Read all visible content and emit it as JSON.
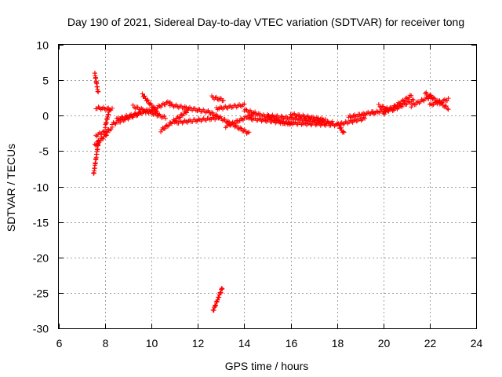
{
  "chart_data": {
    "type": "scatter",
    "title": "Day 190 of 2021, Sidereal Day-to-day VTEC variation (SDTVAR) for receiver tong",
    "xlabel": "GPS time / hours",
    "ylabel": "SDTVAR / TECUs",
    "xlim": [
      6,
      24
    ],
    "ylim": [
      -30,
      10
    ],
    "xticks": [
      6,
      8,
      10,
      12,
      14,
      16,
      18,
      20,
      22,
      24
    ],
    "yticks": [
      -30,
      -25,
      -20,
      -15,
      -10,
      -5,
      0,
      5,
      10
    ],
    "grid": true,
    "marker": "+",
    "series_color": "#ff0000",
    "segments": [
      {
        "x": [
          7.55,
          7.7
        ],
        "y": [
          6.0,
          3.2
        ]
      },
      {
        "x": [
          7.5,
          7.72
        ],
        "y": [
          -8.3,
          -3.5
        ]
      },
      {
        "x": [
          7.55,
          8.1
        ],
        "y": [
          -4.2,
          -2.5
        ]
      },
      {
        "x": [
          7.6,
          8.3
        ],
        "y": [
          -2.8,
          -1.8
        ]
      },
      {
        "x": [
          7.6,
          8.3
        ],
        "y": [
          1.1,
          0.9
        ]
      },
      {
        "x": [
          8.0,
          8.2
        ],
        "y": [
          -1.5,
          1.0
        ]
      },
      {
        "x": [
          8.3,
          9.5
        ],
        "y": [
          -1.2,
          0.3
        ]
      },
      {
        "x": [
          8.5,
          10.0
        ],
        "y": [
          -0.5,
          0.8
        ]
      },
      {
        "x": [
          9.2,
          10.6
        ],
        "y": [
          1.3,
          -0.3
        ]
      },
      {
        "x": [
          9.6,
          10.3
        ],
        "y": [
          3.0,
          0.2
        ]
      },
      {
        "x": [
          10.0,
          10.8
        ],
        "y": [
          0.8,
          2.0
        ]
      },
      {
        "x": [
          10.4,
          11.6
        ],
        "y": [
          -2.1,
          0.8
        ]
      },
      {
        "x": [
          10.8,
          12.5
        ],
        "y": [
          1.5,
          0.5
        ]
      },
      {
        "x": [
          11.0,
          12.9
        ],
        "y": [
          -1.0,
          -0.3
        ]
      },
      {
        "x": [
          12.6,
          13.1
        ],
        "y": [
          2.6,
          2.2
        ]
      },
      {
        "x": [
          12.8,
          14.0
        ],
        "y": [
          1.0,
          1.5
        ]
      },
      {
        "x": [
          12.5,
          14.2
        ],
        "y": [
          0.5,
          -2.5
        ]
      },
      {
        "x": [
          13.2,
          14.4
        ],
        "y": [
          -1.5,
          0.2
        ]
      },
      {
        "x": [
          14.0,
          15.6
        ],
        "y": [
          0.8,
          -0.8
        ]
      },
      {
        "x": [
          14.2,
          16.0
        ],
        "y": [
          -0.4,
          -1.1
        ]
      },
      {
        "x": [
          15.0,
          17.8
        ],
        "y": [
          0.0,
          -1.0
        ]
      },
      {
        "x": [
          15.6,
          18.0
        ],
        "y": [
          -1.0,
          -1.3
        ]
      },
      {
        "x": [
          16.0,
          17.5
        ],
        "y": [
          0.2,
          -0.6
        ]
      },
      {
        "x": [
          18.0,
          18.3
        ],
        "y": [
          -1.0,
          -2.5
        ]
      },
      {
        "x": [
          18.1,
          19.2
        ],
        "y": [
          -1.2,
          -0.4
        ]
      },
      {
        "x": [
          18.5,
          19.6
        ],
        "y": [
          -0.2,
          0.5
        ]
      },
      {
        "x": [
          19.5,
          20.6
        ],
        "y": [
          0.3,
          1.2
        ]
      },
      {
        "x": [
          19.8,
          20.2
        ],
        "y": [
          1.4,
          0.9
        ]
      },
      {
        "x": [
          20.0,
          21.2
        ],
        "y": [
          0.3,
          2.8
        ]
      },
      {
        "x": [
          20.4,
          21.3
        ],
        "y": [
          0.8,
          2.2
        ]
      },
      {
        "x": [
          21.2,
          22.1
        ],
        "y": [
          1.4,
          2.8
        ]
      },
      {
        "x": [
          21.8,
          22.8
        ],
        "y": [
          3.2,
          1.0
        ]
      },
      {
        "x": [
          22.0,
          22.8
        ],
        "y": [
          1.5,
          2.3
        ]
      },
      {
        "x": [
          12.65,
          13.05
        ],
        "y": [
          -27.6,
          -24.3
        ]
      }
    ]
  }
}
